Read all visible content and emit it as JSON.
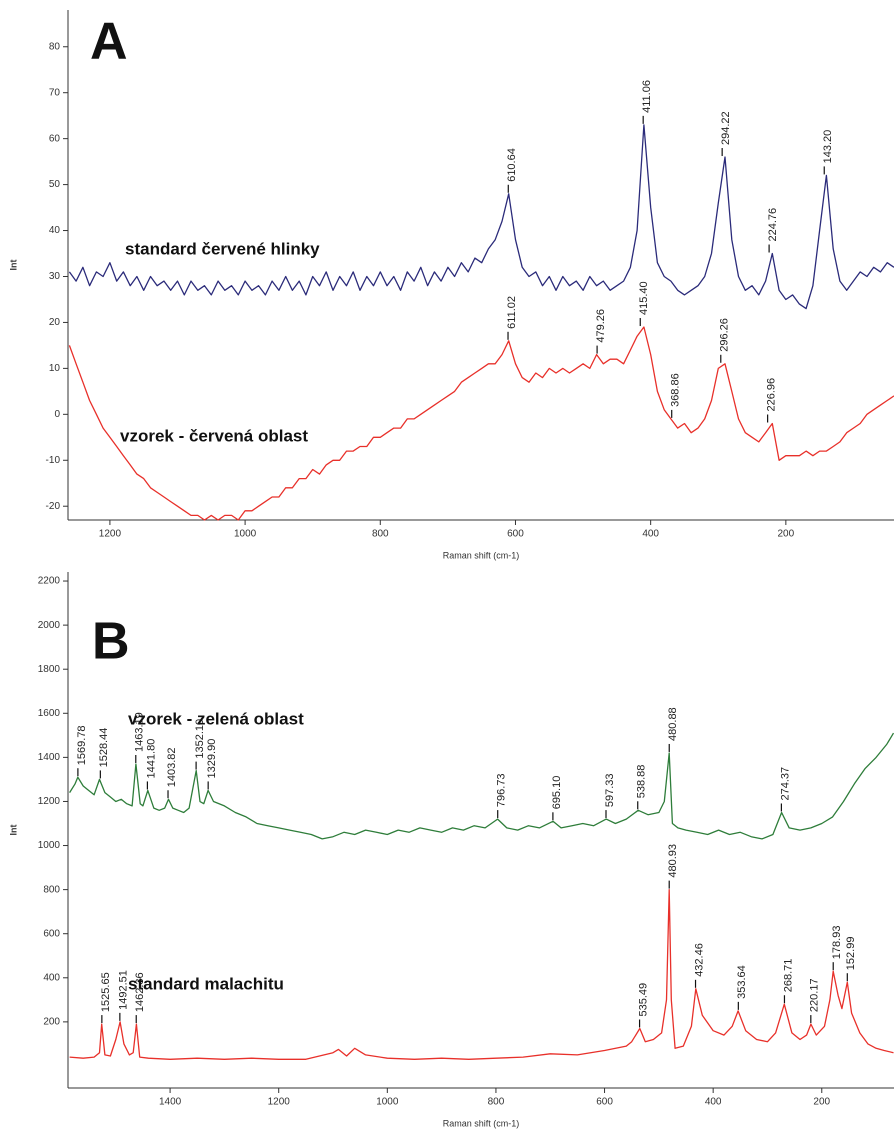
{
  "chart_data": [
    {
      "type": "line",
      "panel_label": "A",
      "ylabel": "Int",
      "xlabel": "Raman shift (cm-1)",
      "xlim": [
        1262,
        40
      ],
      "ylim": [
        -23,
        88
      ],
      "xticks": [
        1200,
        1000,
        800,
        600,
        400,
        200
      ],
      "yticks": [
        -20,
        -10,
        0,
        10,
        20,
        30,
        40,
        50,
        60,
        70,
        80
      ],
      "series": [
        {
          "name": "standard červené hlinky",
          "color": "#2b2b7a",
          "x": [
            1260,
            1250,
            1240,
            1230,
            1220,
            1210,
            1200,
            1190,
            1180,
            1170,
            1160,
            1150,
            1140,
            1130,
            1120,
            1110,
            1100,
            1090,
            1080,
            1070,
            1060,
            1050,
            1040,
            1030,
            1020,
            1010,
            1000,
            990,
            980,
            970,
            960,
            950,
            940,
            930,
            920,
            910,
            900,
            890,
            880,
            870,
            860,
            850,
            840,
            830,
            820,
            810,
            800,
            790,
            780,
            770,
            760,
            750,
            740,
            730,
            720,
            710,
            700,
            690,
            680,
            670,
            660,
            650,
            640,
            630,
            620,
            610,
            600,
            590,
            580,
            570,
            560,
            550,
            540,
            530,
            520,
            510,
            500,
            490,
            480,
            470,
            460,
            450,
            440,
            430,
            420,
            410,
            400,
            390,
            380,
            370,
            360,
            350,
            340,
            330,
            320,
            310,
            300,
            290,
            280,
            270,
            260,
            250,
            240,
            230,
            220,
            210,
            200,
            190,
            180,
            170,
            160,
            150,
            140,
            130,
            120,
            110,
            100,
            90,
            80,
            70,
            60,
            50,
            40
          ],
          "values": [
            31,
            29,
            32,
            28,
            31,
            30,
            33,
            29,
            31,
            28,
            30,
            27,
            30,
            28,
            29,
            27,
            29,
            26,
            29,
            27,
            28,
            26,
            29,
            27,
            28,
            26,
            29,
            27,
            28,
            26,
            29,
            27,
            30,
            27,
            29,
            26,
            30,
            28,
            31,
            27,
            30,
            28,
            31,
            27,
            30,
            28,
            31,
            28,
            30,
            27,
            31,
            29,
            32,
            28,
            31,
            29,
            32,
            30,
            33,
            31,
            34,
            33,
            36,
            38,
            42,
            48,
            38,
            32,
            30,
            31,
            28,
            30,
            27,
            30,
            28,
            29,
            27,
            30,
            28,
            29,
            27,
            28,
            29,
            32,
            40,
            63,
            45,
            33,
            30,
            29,
            27,
            26,
            27,
            28,
            30,
            35,
            46,
            56,
            38,
            30,
            27,
            28,
            26,
            29,
            35,
            27,
            25,
            26,
            24,
            23,
            28,
            40,
            52,
            36,
            29,
            27,
            29,
            31,
            30,
            32,
            31,
            33,
            32
          ],
          "peaks": [
            {
              "text": "610.64",
              "x": 610.64,
              "y": 48
            },
            {
              "text": "411.06",
              "x": 411.06,
              "y": 63
            },
            {
              "text": "294.22",
              "x": 294.22,
              "y": 56
            },
            {
              "text": "224.76",
              "x": 224.76,
              "y": 35
            },
            {
              "text": "143.20",
              "x": 143.2,
              "y": 52
            }
          ]
        },
        {
          "name": "vzorek - červená oblast",
          "color": "#e8302a",
          "x": [
            1260,
            1250,
            1240,
            1230,
            1220,
            1210,
            1200,
            1190,
            1180,
            1170,
            1160,
            1150,
            1140,
            1130,
            1120,
            1110,
            1100,
            1090,
            1080,
            1070,
            1060,
            1050,
            1040,
            1030,
            1020,
            1010,
            1000,
            990,
            980,
            970,
            960,
            950,
            940,
            930,
            920,
            910,
            900,
            890,
            880,
            870,
            860,
            850,
            840,
            830,
            820,
            810,
            800,
            790,
            780,
            770,
            760,
            750,
            740,
            730,
            720,
            710,
            700,
            690,
            680,
            670,
            660,
            650,
            640,
            630,
            620,
            610,
            600,
            590,
            580,
            570,
            560,
            550,
            540,
            530,
            520,
            510,
            500,
            490,
            480,
            470,
            460,
            450,
            440,
            430,
            420,
            410,
            400,
            390,
            380,
            370,
            360,
            350,
            340,
            330,
            320,
            310,
            300,
            290,
            280,
            270,
            260,
            250,
            240,
            230,
            220,
            210,
            200,
            190,
            180,
            170,
            160,
            150,
            140,
            130,
            120,
            110,
            100,
            90,
            80,
            70,
            60,
            50,
            40
          ],
          "values": [
            15,
            11,
            7,
            3,
            0,
            -3,
            -5,
            -7,
            -9,
            -11,
            -13,
            -14,
            -16,
            -17,
            -18,
            -19,
            -20,
            -21,
            -22,
            -22,
            -23,
            -22,
            -23,
            -22,
            -22,
            -23,
            -21,
            -21,
            -20,
            -19,
            -18,
            -18,
            -16,
            -16,
            -14,
            -14,
            -12,
            -13,
            -11,
            -10,
            -10,
            -8,
            -8,
            -7,
            -7,
            -5,
            -5,
            -4,
            -3,
            -3,
            -1,
            -1,
            0,
            1,
            2,
            3,
            4,
            5,
            7,
            8,
            9,
            10,
            11,
            11,
            13,
            16,
            11,
            8,
            7,
            9,
            8,
            10,
            9,
            10,
            9,
            10,
            11,
            10,
            13,
            11,
            12,
            12,
            11,
            14,
            17,
            19,
            13,
            5,
            1,
            -1,
            -3,
            -2,
            -4,
            -3,
            -1,
            3,
            10,
            11,
            5,
            -1,
            -4,
            -5,
            -6,
            -4,
            -2,
            -10,
            -9,
            -9,
            -9,
            -8,
            -9,
            -8,
            -8,
            -7,
            -6,
            -4,
            -3,
            -2,
            0,
            1,
            2,
            3,
            4
          ],
          "peaks": [
            {
              "text": "611.02",
              "x": 611.02,
              "y": 16
            },
            {
              "text": "479.26",
              "x": 479.26,
              "y": 13
            },
            {
              "text": "415.40",
              "x": 415.4,
              "y": 19
            },
            {
              "text": "368.86",
              "x": 368.86,
              "y": -1
            },
            {
              "text": "296.26",
              "x": 296.26,
              "y": 11
            },
            {
              "text": "226.96",
              "x": 226.96,
              "y": -2
            }
          ]
        }
      ]
    },
    {
      "type": "line",
      "panel_label": "B",
      "ylabel": "Int",
      "xlabel": "Raman shift (cm-1)",
      "xlim": [
        1588,
        67
      ],
      "ylim": [
        -100,
        2241
      ],
      "xticks": [
        1400,
        1200,
        1000,
        800,
        600,
        400,
        200
      ],
      "yticks": [
        200,
        400,
        600,
        800,
        1000,
        1200,
        1400,
        1600,
        1800,
        2000,
        2200
      ],
      "series": [
        {
          "name": "vzorek - zelená oblast",
          "color": "#2e7d3a",
          "x": [
            1585,
            1575,
            1570,
            1560,
            1550,
            1540,
            1530,
            1520,
            1510,
            1500,
            1490,
            1480,
            1470,
            1463,
            1455,
            1450,
            1441,
            1430,
            1420,
            1410,
            1403,
            1395,
            1385,
            1375,
            1365,
            1352,
            1345,
            1338,
            1330,
            1320,
            1300,
            1280,
            1260,
            1240,
            1220,
            1200,
            1180,
            1160,
            1140,
            1120,
            1100,
            1080,
            1060,
            1040,
            1020,
            1000,
            980,
            960,
            940,
            920,
            900,
            880,
            860,
            840,
            820,
            797,
            780,
            760,
            740,
            720,
            695,
            680,
            660,
            640,
            620,
            597,
            580,
            560,
            538,
            520,
            500,
            490,
            481,
            475,
            465,
            450,
            430,
            410,
            390,
            370,
            350,
            330,
            310,
            290,
            274,
            260,
            240,
            220,
            200,
            180,
            160,
            140,
            120,
            100,
            80,
            68
          ],
          "values": [
            1240,
            1280,
            1310,
            1270,
            1250,
            1230,
            1300,
            1240,
            1220,
            1200,
            1210,
            1190,
            1180,
            1370,
            1190,
            1180,
            1250,
            1170,
            1160,
            1170,
            1210,
            1170,
            1160,
            1150,
            1170,
            1340,
            1200,
            1190,
            1250,
            1200,
            1180,
            1150,
            1130,
            1100,
            1090,
            1080,
            1070,
            1060,
            1050,
            1030,
            1040,
            1060,
            1050,
            1070,
            1060,
            1050,
            1070,
            1060,
            1080,
            1070,
            1060,
            1080,
            1070,
            1090,
            1080,
            1120,
            1080,
            1070,
            1090,
            1080,
            1110,
            1080,
            1090,
            1100,
            1090,
            1120,
            1100,
            1120,
            1160,
            1140,
            1150,
            1200,
            1420,
            1100,
            1080,
            1070,
            1060,
            1050,
            1070,
            1050,
            1060,
            1040,
            1030,
            1050,
            1150,
            1080,
            1070,
            1080,
            1100,
            1130,
            1200,
            1280,
            1350,
            1400,
            1460,
            1510
          ],
          "peaks": [
            {
              "text": "1569.78",
              "x": 1569.78,
              "y": 1310
            },
            {
              "text": "1528.44",
              "x": 1528.44,
              "y": 1300
            },
            {
              "text": "1463.19",
              "x": 1463.19,
              "y": 1370
            },
            {
              "text": "1441.80",
              "x": 1441.8,
              "y": 1250
            },
            {
              "text": "1403.82",
              "x": 1403.82,
              "y": 1210
            },
            {
              "text": "1352.10",
              "x": 1352.1,
              "y": 1340
            },
            {
              "text": "1329.90",
              "x": 1329.9,
              "y": 1250
            },
            {
              "text": "796.73",
              "x": 796.73,
              "y": 1120
            },
            {
              "text": "695.10",
              "x": 695.1,
              "y": 1110
            },
            {
              "text": "597.33",
              "x": 597.33,
              "y": 1120
            },
            {
              "text": "538.88",
              "x": 538.88,
              "y": 1160
            },
            {
              "text": "480.88",
              "x": 480.88,
              "y": 1420
            },
            {
              "text": "274.37",
              "x": 274.37,
              "y": 1150
            }
          ]
        },
        {
          "name": "standard malachitu",
          "color": "#e8302a",
          "x": [
            1585,
            1560,
            1540,
            1530,
            1526,
            1520,
            1510,
            1500,
            1492,
            1485,
            1475,
            1468,
            1462,
            1456,
            1440,
            1400,
            1350,
            1300,
            1250,
            1200,
            1150,
            1100,
            1090,
            1075,
            1060,
            1040,
            1000,
            950,
            900,
            850,
            800,
            750,
            700,
            650,
            600,
            560,
            550,
            535,
            525,
            510,
            495,
            486,
            481,
            477,
            470,
            455,
            440,
            432,
            420,
            400,
            380,
            365,
            354,
            340,
            320,
            300,
            285,
            269,
            255,
            240,
            228,
            220,
            210,
            195,
            185,
            179,
            170,
            163,
            153,
            145,
            130,
            115,
            100,
            85,
            68
          ],
          "values": [
            40,
            35,
            40,
            60,
            190,
            50,
            45,
            120,
            200,
            100,
            50,
            60,
            190,
            40,
            35,
            30,
            35,
            30,
            35,
            30,
            30,
            60,
            75,
            45,
            80,
            50,
            35,
            30,
            35,
            30,
            35,
            40,
            55,
            50,
            70,
            90,
            110,
            170,
            110,
            120,
            150,
            300,
            800,
            300,
            80,
            90,
            180,
            350,
            230,
            160,
            140,
            180,
            250,
            160,
            120,
            110,
            150,
            280,
            150,
            120,
            140,
            190,
            140,
            180,
            300,
            430,
            320,
            260,
            380,
            240,
            150,
            100,
            80,
            70,
            60
          ],
          "peaks": [
            {
              "text": "1525.65",
              "x": 1525.65,
              "y": 190
            },
            {
              "text": "1492.51",
              "x": 1492.51,
              "y": 200
            },
            {
              "text": "1462.36",
              "x": 1462.36,
              "y": 190
            },
            {
              "text": "535.49",
              "x": 535.49,
              "y": 170
            },
            {
              "text": "480.93",
              "x": 480.93,
              "y": 800
            },
            {
              "text": "432.46",
              "x": 432.46,
              "y": 350
            },
            {
              "text": "353.64",
              "x": 353.64,
              "y": 250
            },
            {
              "text": "268.71",
              "x": 268.71,
              "y": 280
            },
            {
              "text": "220.17",
              "x": 220.17,
              "y": 190
            },
            {
              "text": "178.93",
              "x": 178.93,
              "y": 430
            },
            {
              "text": "152.99",
              "x": 152.99,
              "y": 380
            }
          ]
        }
      ]
    }
  ]
}
